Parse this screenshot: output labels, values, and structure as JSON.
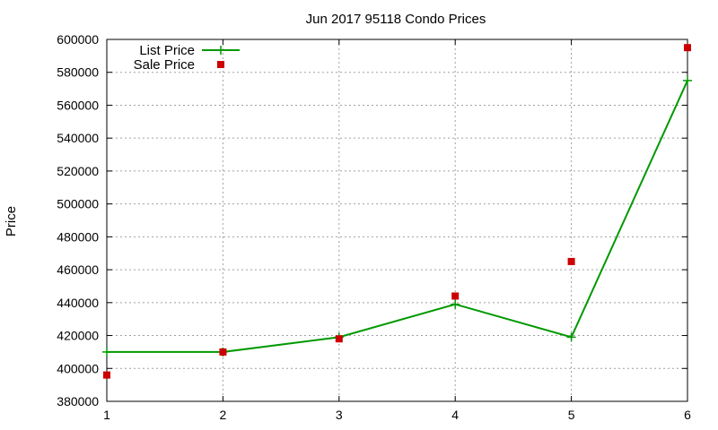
{
  "chart_data": {
    "type": "line",
    "title": "Jun 2017 95118 Condo Prices",
    "xlabel": "",
    "ylabel": "Price",
    "xlim": [
      1,
      6
    ],
    "ylim": [
      380000,
      600000
    ],
    "x_ticks": [
      "1",
      "2",
      "3",
      "4",
      "5",
      "6"
    ],
    "y_ticks": [
      "380000",
      "400000",
      "420000",
      "440000",
      "460000",
      "480000",
      "500000",
      "520000",
      "540000",
      "560000",
      "580000",
      "600000"
    ],
    "grid": true,
    "legend_position": "top-left",
    "series": [
      {
        "name": "List Price",
        "style": "line-plus",
        "color": "#009900",
        "x": [
          1,
          2,
          3,
          4,
          5,
          6
        ],
        "y": [
          410000,
          410000,
          419000,
          439000,
          419000,
          575000
        ]
      },
      {
        "name": "Sale Price",
        "style": "square-points",
        "color": "#cc0000",
        "x": [
          1,
          2,
          3,
          4,
          5,
          6
        ],
        "y": [
          396000,
          410000,
          418000,
          444000,
          465000,
          595000
        ]
      }
    ]
  }
}
